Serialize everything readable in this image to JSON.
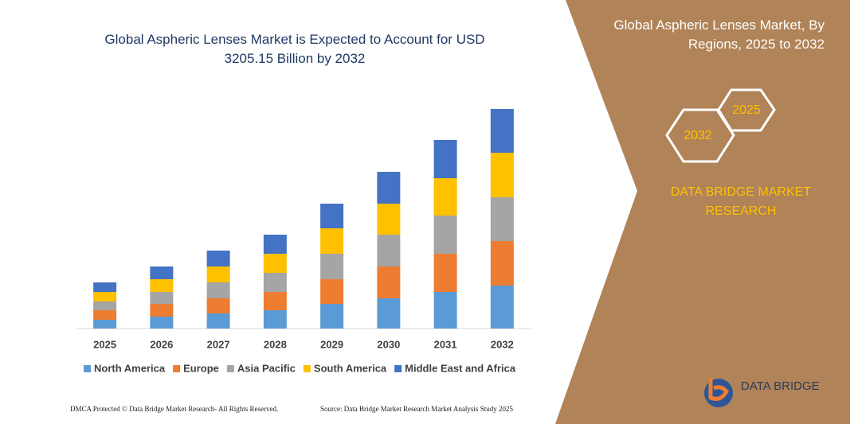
{
  "chart_data": {
    "type": "stacked-bar",
    "title": "Global Aspheric Lenses Market is Expected to Account for USD 3205.15 Billion by 2032",
    "categories": [
      "2025",
      "2026",
      "2027",
      "2028",
      "2029",
      "2030",
      "2031",
      "2032"
    ],
    "series": [
      {
        "name": "North America",
        "color": "#5b9bd5",
        "values": [
          11,
          15,
          19,
          23,
          31,
          38,
          46,
          54
        ]
      },
      {
        "name": "Europe",
        "color": "#ed7d31",
        "values": [
          12,
          16,
          19,
          23,
          31,
          40,
          48,
          56
        ]
      },
      {
        "name": "Asia Pacific",
        "color": "#a5a5a5",
        "values": [
          11,
          15,
          20,
          24,
          32,
          40,
          48,
          55
        ]
      },
      {
        "name": "South America",
        "color": "#ffc000",
        "values": [
          12,
          16,
          20,
          24,
          32,
          39,
          47,
          56
        ]
      },
      {
        "name": "Middle East and Africa",
        "color": "#4472c4",
        "values": [
          12,
          16,
          20,
          24,
          31,
          40,
          48,
          55
        ]
      }
    ]
  },
  "panel": {
    "title": "Global Aspheric Lenses Market, By Regions, 2025 to 2032",
    "hex_labels": [
      "2025",
      "2032"
    ],
    "brand": "DATA BRIDGE MARKET RESEARCH"
  },
  "logo": "DATA BRIDGE",
  "footer": {
    "left": "DMCA Protected © Data Bridge Market Research-  All Rights Reserved.",
    "right": "Source: Data Bridge Market Research  Market Analysis Study 2025"
  }
}
